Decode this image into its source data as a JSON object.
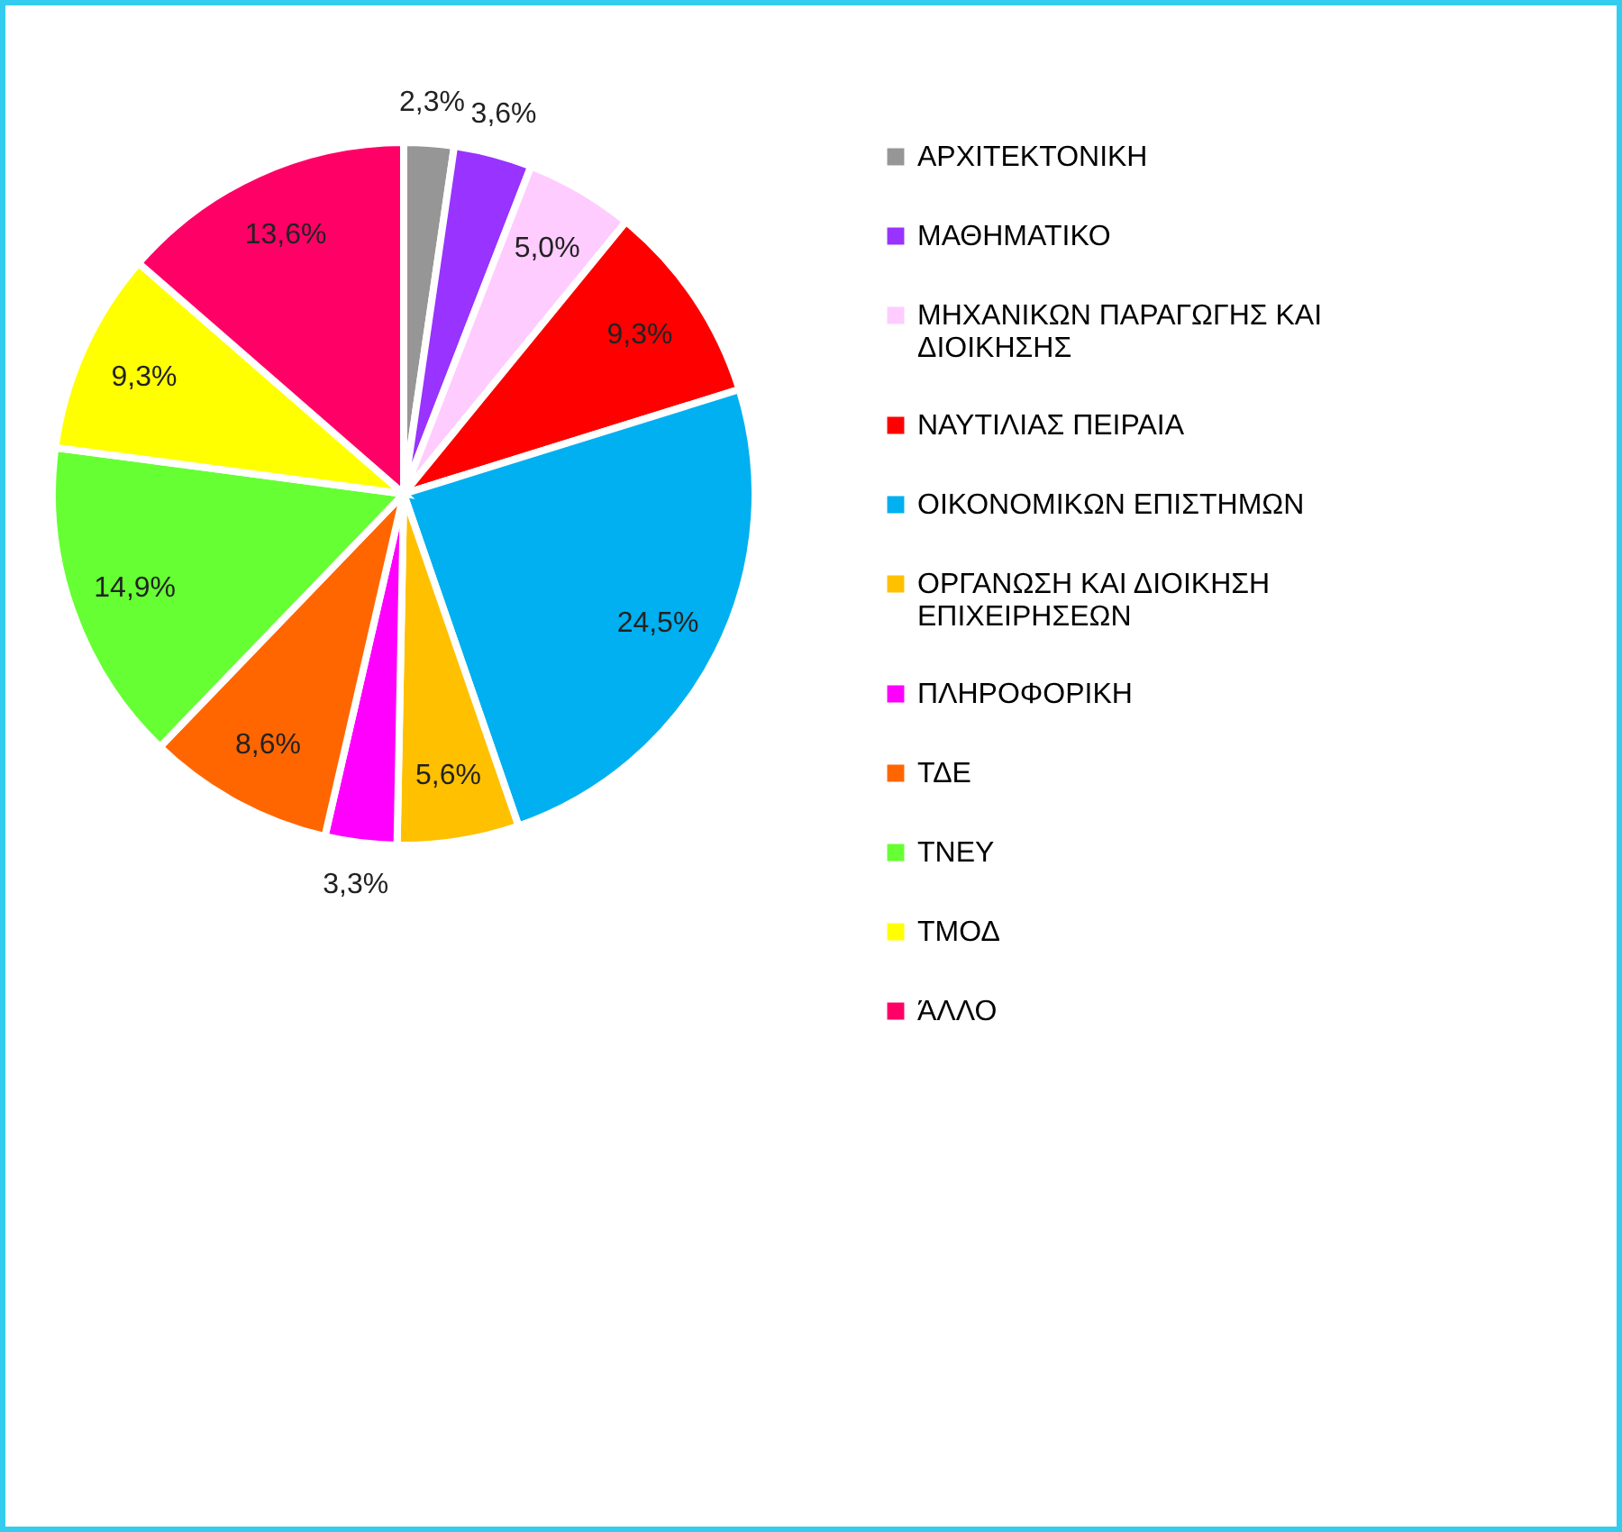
{
  "chart_data": {
    "type": "pie",
    "categories": [
      "ΑΡΧΙΤΕΚΤΟΝΙΚΗ",
      "ΜΑΘΗΜΑΤΙΚΟ",
      "ΜΗΧΑΝΙΚΩΝ ΠΑΡΑΓΩΓΗΣ ΚΑΙ ΔΙΟΙΚΗΣΗΣ",
      "ΝΑΥΤΙΛΙΑΣ ΠΕΙΡΑΙΑ",
      "ΟΙΚΟΝΟΜΙΚΩΝ ΕΠΙΣΤΗΜΩΝ",
      "ΟΡΓΑΝΩΣΗ ΚΑΙ ΔΙΟΙΚΗΣΗ ΕΠΙΧΕΙΡΗΣΕΩΝ",
      "ΠΛΗΡΟΦΟΡΙΚΗ",
      "ΤΔΕ",
      "ΤΝΕΥ",
      "ΤΜΟΔ",
      "ΆΛΛΟ"
    ],
    "values": [
      2.3,
      3.6,
      5.0,
      9.3,
      24.5,
      5.6,
      3.3,
      8.6,
      14.9,
      9.3,
      13.6
    ],
    "value_labels": [
      "2,3%",
      "3,6%",
      "5,0%",
      "9,3%",
      "24,5%",
      "5,6%",
      "3,3%",
      "8,6%",
      "14,9%",
      "9,3%",
      "13,6%"
    ],
    "colors": [
      "#969696",
      "#9933ff",
      "#ffccff",
      "#ff0000",
      "#00b0f0",
      "#ffc000",
      "#ff00ff",
      "#ff6600",
      "#66ff33",
      "#ffff00",
      "#ff0066"
    ],
    "legend": "right"
  }
}
